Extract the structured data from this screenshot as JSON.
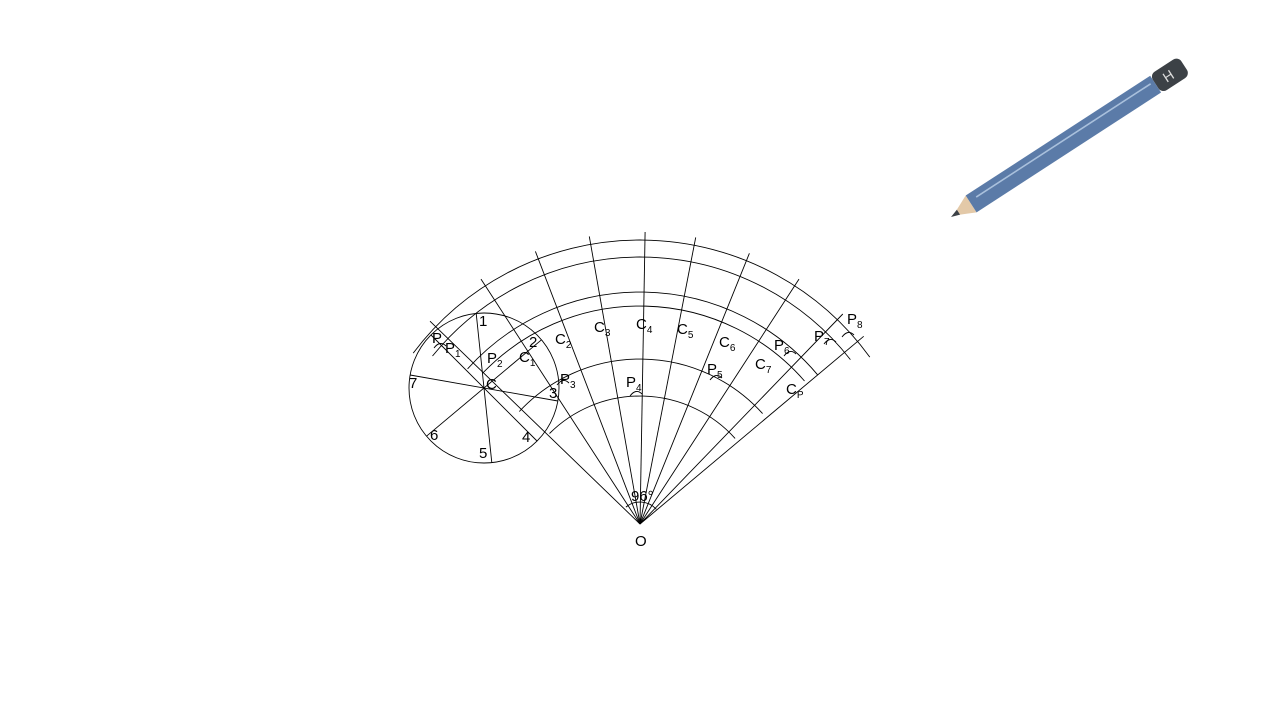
{
  "diagram": {
    "center_label": "O",
    "angle_label": "96°",
    "rolling_center": "C",
    "division_labels": [
      "1",
      "2",
      "3",
      "4",
      "5",
      "6",
      "7"
    ],
    "point_p": "P",
    "points_p": [
      {
        "base": "P",
        "sub": "1"
      },
      {
        "base": "P",
        "sub": "2"
      },
      {
        "base": "P",
        "sub": "3"
      },
      {
        "base": "P",
        "sub": "4"
      },
      {
        "base": "P",
        "sub": "5"
      },
      {
        "base": "P",
        "sub": "6"
      },
      {
        "base": "P",
        "sub": "7"
      },
      {
        "base": "P",
        "sub": "8"
      }
    ],
    "points_c": [
      {
        "base": "C",
        "sub": "1"
      },
      {
        "base": "C",
        "sub": "2"
      },
      {
        "base": "C",
        "sub": "3"
      },
      {
        "base": "C",
        "sub": "4"
      },
      {
        "base": "C",
        "sub": "5"
      },
      {
        "base": "C",
        "sub": "6"
      },
      {
        "base": "C",
        "sub": "7"
      },
      {
        "base": "C",
        "sub": "P"
      }
    ]
  },
  "pencil": {
    "grade": "H",
    "colors": {
      "body": "#5b7ba8",
      "highlight": "#a9c0dc",
      "cap": "#3c4146",
      "wood": "#e3c9a8",
      "lead": "#3c4146"
    }
  }
}
